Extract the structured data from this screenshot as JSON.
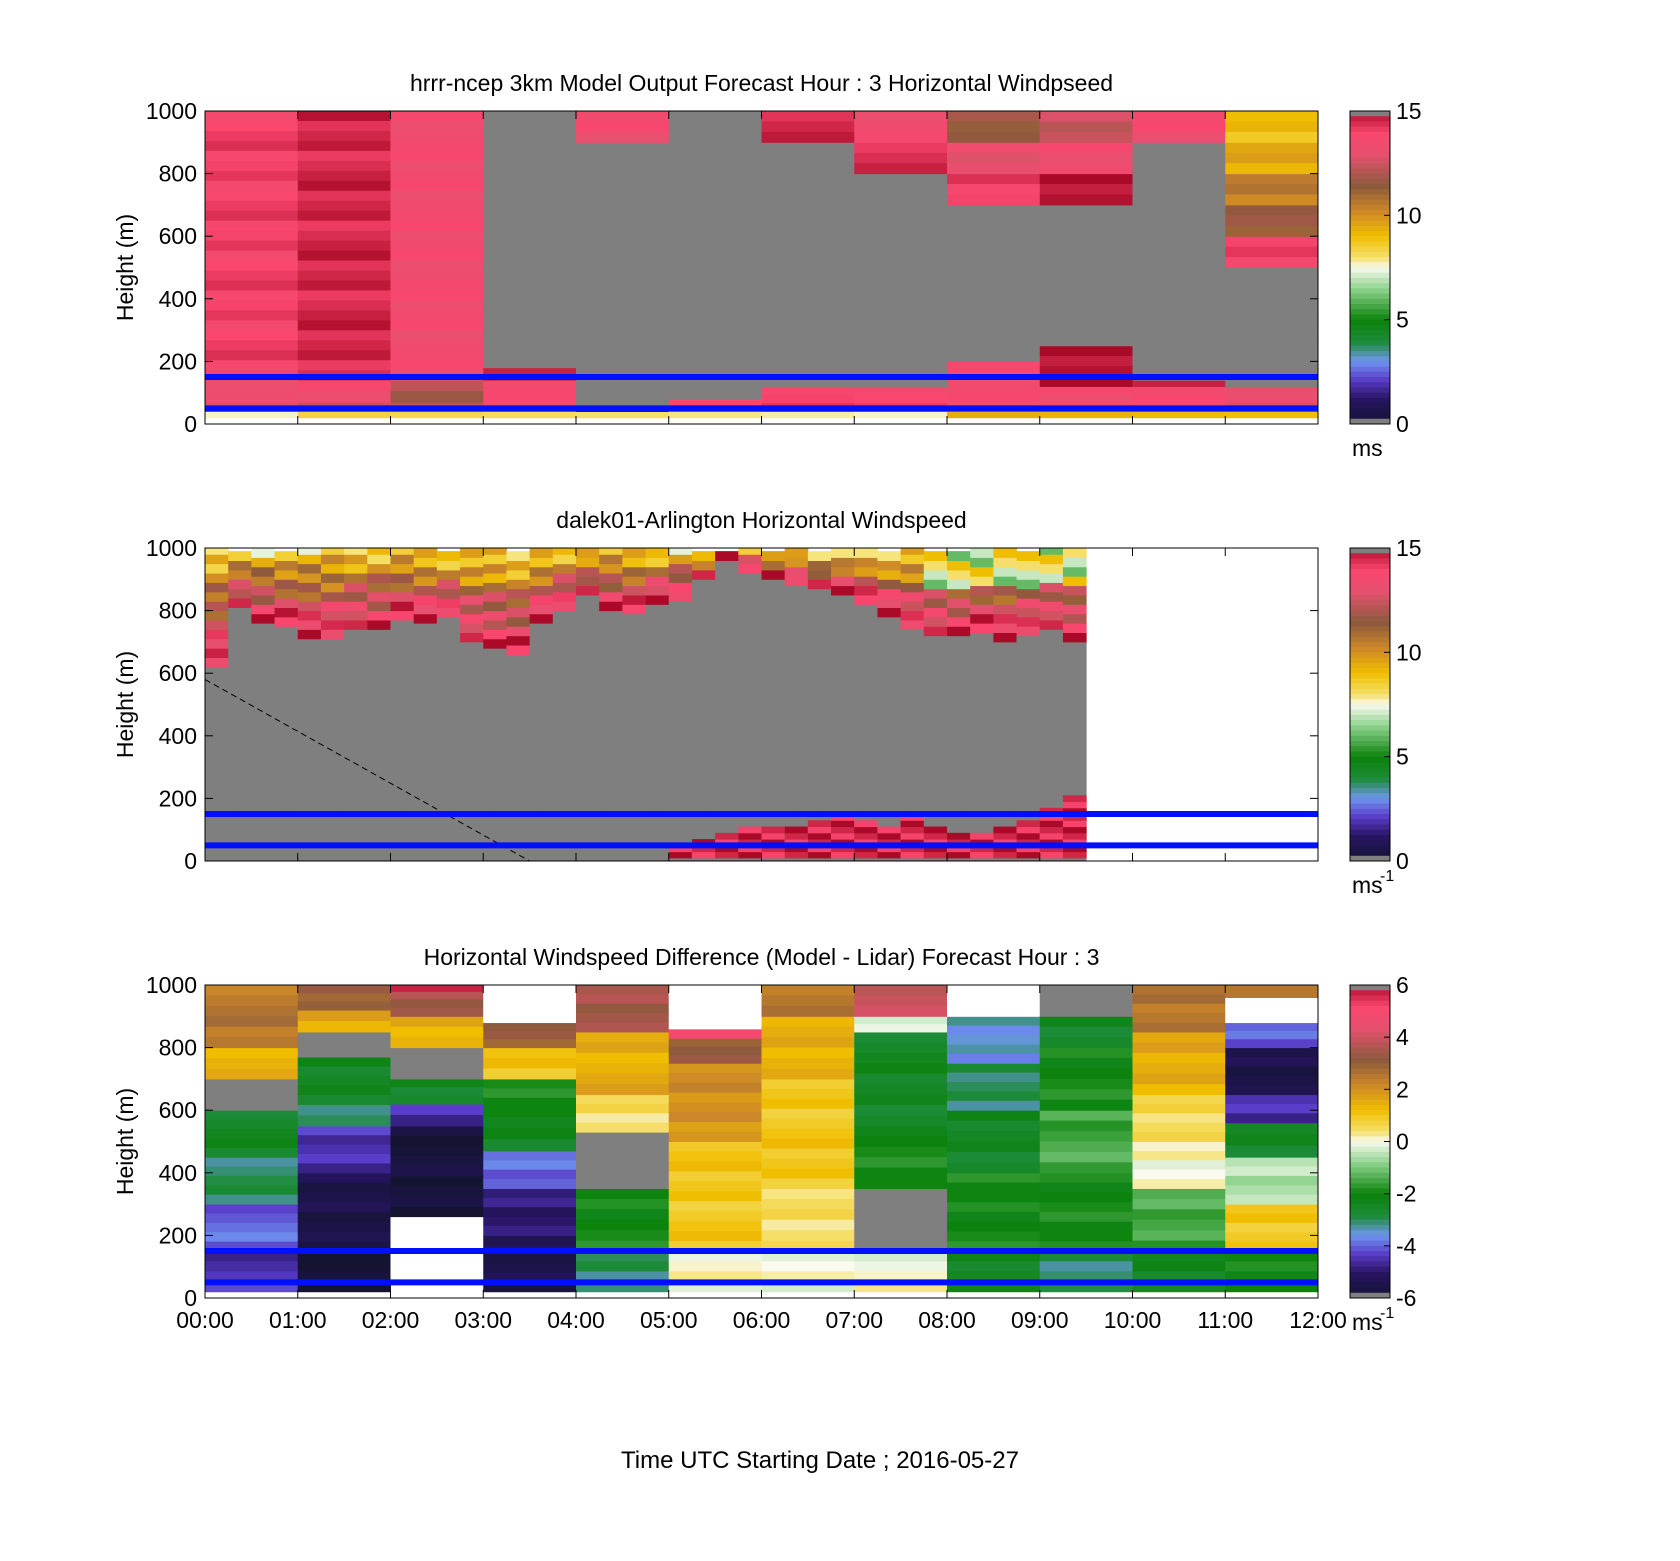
{
  "figure": {
    "xlabel": "Time UTC  Starting Date ; 2016-05-27",
    "x_ticks": [
      "00:00",
      "01:00",
      "02:00",
      "03:00",
      "04:00",
      "05:00",
      "06:00",
      "07:00",
      "08:00",
      "09:00",
      "10:00",
      "11:00",
      "12:00"
    ]
  },
  "chart_data": [
    {
      "type": "heatmap",
      "title": "hrrr-ncep 3km Model Output   Forecast Hour : 3 Horizontal Windpseed",
      "xlabel": "",
      "ylabel": "Height (m)",
      "xlim": [
        0,
        12
      ],
      "ylim": [
        0,
        1000
      ],
      "y_ticks": [
        0,
        200,
        400,
        600,
        800,
        1000
      ],
      "colorbar": {
        "ticks": [
          0,
          5,
          10,
          15
        ],
        "range": [
          0,
          15
        ],
        "unit": "ms",
        "unit_sup": "",
        "palette": "speed"
      },
      "hlines": [
        50,
        150
      ],
      "grid": false,
      "columns": [
        {
          "x": 0,
          "segments": [
            [
              20,
              40,
              8
            ],
            [
              40,
              70,
              13
            ],
            [
              70,
              140,
              13.5
            ],
            [
              140,
              1000,
              14
            ]
          ]
        },
        {
          "x": 1,
          "segments": [
            [
              20,
              40,
              8
            ],
            [
              40,
              70,
              12
            ],
            [
              70,
              140,
              13.5
            ],
            [
              140,
              1000,
              14.5
            ]
          ]
        },
        {
          "x": 2,
          "segments": [
            [
              20,
              40,
              8
            ],
            [
              40,
              70,
              12
            ],
            [
              70,
              140,
              12
            ],
            [
              140,
              1000,
              13.5
            ]
          ]
        },
        {
          "x": 3,
          "segments": [
            [
              20,
              40,
              8
            ],
            [
              40,
              70,
              13
            ],
            [
              70,
              140,
              13.5
            ],
            [
              140,
              180,
              14.5
            ],
            [
              180,
              1000,
              -1
            ]
          ]
        },
        {
          "x": 4,
          "segments": [
            [
              20,
              40,
              8
            ],
            [
              40,
              60,
              1
            ],
            [
              60,
              900,
              -1
            ],
            [
              900,
              1000,
              13.5
            ]
          ]
        },
        {
          "x": 5,
          "segments": [
            [
              20,
              40,
              8
            ],
            [
              40,
              80,
              14
            ],
            [
              80,
              1000,
              -1
            ]
          ]
        },
        {
          "x": 6,
          "segments": [
            [
              20,
              40,
              8
            ],
            [
              40,
              120,
              14
            ],
            [
              120,
              900,
              -1
            ],
            [
              900,
              1000,
              14.5
            ]
          ]
        },
        {
          "x": 7,
          "segments": [
            [
              20,
              40,
              8
            ],
            [
              40,
              120,
              14
            ],
            [
              120,
              800,
              -1
            ],
            [
              800,
              900,
              14.5
            ],
            [
              900,
              1000,
              13.5
            ]
          ]
        },
        {
          "x": 8,
          "segments": [
            [
              20,
              40,
              9
            ],
            [
              40,
              200,
              13.5
            ],
            [
              200,
              700,
              -1
            ],
            [
              700,
              800,
              14
            ],
            [
              800,
              900,
              13
            ],
            [
              900,
              1000,
              11.5
            ]
          ]
        },
        {
          "x": 9,
          "segments": [
            [
              20,
              40,
              9
            ],
            [
              40,
              120,
              13.5
            ],
            [
              120,
              250,
              15
            ],
            [
              250,
              700,
              -1
            ],
            [
              700,
              800,
              15
            ],
            [
              800,
              900,
              13.5
            ],
            [
              900,
              1000,
              12.5
            ]
          ]
        },
        {
          "x": 10,
          "segments": [
            [
              20,
              40,
              9
            ],
            [
              40,
              120,
              13.5
            ],
            [
              120,
              140,
              14.5
            ],
            [
              140,
              900,
              -1
            ],
            [
              900,
              1000,
              13.5
            ]
          ]
        },
        {
          "x": 11,
          "segments": [
            [
              20,
              40,
              9
            ],
            [
              40,
              120,
              13
            ],
            [
              120,
              500,
              -1
            ],
            [
              500,
              600,
              14
            ],
            [
              600,
              700,
              11.5
            ],
            [
              700,
              800,
              10.5
            ],
            [
              800,
              900,
              9.5
            ],
            [
              900,
              1000,
              9
            ]
          ]
        }
      ]
    },
    {
      "type": "heatmap",
      "title": "dalek01-Arlington  Horizontal Windspeed",
      "xlabel": "",
      "ylabel": "Height (m)",
      "xlim": [
        0,
        12
      ],
      "ylim": [
        0,
        1000
      ],
      "y_ticks": [
        0,
        200,
        400,
        600,
        800,
        1000
      ],
      "colorbar": {
        "ticks": [
          0,
          5,
          10,
          15
        ],
        "range": [
          0,
          15
        ],
        "unit": "ms",
        "unit_sup": "-1",
        "palette": "speed"
      },
      "hlines": [
        50,
        150
      ],
      "grid": false,
      "bins_per_hour": 4,
      "data_top": [
        620,
        810,
        760,
        750,
        710,
        710,
        740,
        740,
        770,
        760,
        780,
        700,
        680,
        660,
        760,
        800,
        850,
        800,
        790,
        820,
        830,
        900,
        960,
        920,
        900,
        880,
        870,
        850,
        820,
        780,
        740,
        720,
        720,
        730,
        700,
        720,
        740,
        700
      ],
      "low_profile": [
        0,
        0,
        0,
        0,
        0,
        0,
        0,
        0,
        0,
        0,
        0,
        0,
        0,
        0,
        0,
        0,
        0,
        0,
        0,
        0,
        40,
        60,
        80,
        100,
        90,
        100,
        120,
        140,
        120,
        100,
        130,
        90,
        70,
        80,
        100,
        120,
        150,
        200
      ],
      "beam_line": {
        "from": [
          0,
          580
        ],
        "to": [
          3.5,
          0
        ]
      }
    },
    {
      "type": "heatmap",
      "title": "Horizontal Windspeed Difference (Model - Lidar) Forecast Hour : 3",
      "xlabel": "Time UTC  Starting Date ; 2016-05-27",
      "ylabel": "Height (m)",
      "xlim": [
        0,
        12
      ],
      "ylim": [
        0,
        1000
      ],
      "y_ticks": [
        0,
        200,
        400,
        600,
        800,
        1000
      ],
      "colorbar": {
        "ticks": [
          -6,
          -4,
          -2,
          0,
          2,
          4,
          6
        ],
        "range": [
          -6,
          6
        ],
        "unit": "ms",
        "unit_sup": "-1",
        "palette": "diff"
      },
      "hlines": [
        50,
        150
      ],
      "grid": false,
      "columns": [
        {
          "x": 0,
          "segments": [
            [
              20,
              150,
              -4.5
            ],
            [
              150,
              300,
              -4
            ],
            [
              300,
              450,
              -3
            ],
            [
              450,
              600,
              -2.5
            ],
            [
              600,
              700,
              -1
            ],
            [
              700,
              800,
              1.5
            ],
            [
              800,
              1000,
              2.5
            ]
          ]
        },
        {
          "x": 1,
          "segments": [
            [
              20,
              180,
              -6
            ],
            [
              180,
              400,
              -5.5
            ],
            [
              400,
              550,
              -4.5
            ],
            [
              550,
              650,
              -3
            ],
            [
              650,
              770,
              -2.5
            ],
            [
              770,
              850,
              -1
            ],
            [
              850,
              920,
              1.5
            ],
            [
              920,
              1000,
              3
            ]
          ]
        },
        {
          "x": 2,
          "segments": [
            [
              60,
              260,
              -99
            ],
            [
              260,
              550,
              -5.8
            ],
            [
              550,
              620,
              -4.5
            ],
            [
              620,
              700,
              -2.5
            ],
            [
              700,
              800,
              -1
            ],
            [
              800,
              900,
              1.5
            ],
            [
              900,
              980,
              3.5
            ],
            [
              980,
              1000,
              5.5
            ]
          ]
        },
        {
          "x": 3,
          "segments": [
            [
              20,
              200,
              -5.5
            ],
            [
              200,
              350,
              -5
            ],
            [
              350,
              470,
              -4
            ],
            [
              470,
              580,
              -2.5
            ],
            [
              580,
              700,
              -2
            ],
            [
              700,
              800,
              1
            ],
            [
              800,
              880,
              3
            ],
            [
              880,
              1000,
              -99
            ]
          ]
        },
        {
          "x": 4,
          "segments": [
            [
              20,
              150,
              -3
            ],
            [
              150,
              350,
              -2
            ],
            [
              350,
              530,
              -1
            ],
            [
              530,
              650,
              0.5
            ],
            [
              650,
              850,
              1.5
            ],
            [
              850,
              1000,
              3.5
            ]
          ]
        },
        {
          "x": 5,
          "segments": [
            [
              20,
              150,
              0
            ],
            [
              150,
              500,
              1
            ],
            [
              500,
              750,
              2
            ],
            [
              750,
              830,
              3
            ],
            [
              830,
              860,
              5
            ],
            [
              860,
              1000,
              -99
            ]
          ]
        },
        {
          "x": 6,
          "segments": [
            [
              20,
              150,
              0
            ],
            [
              150,
              350,
              0.5
            ],
            [
              350,
              700,
              1
            ],
            [
              700,
              900,
              1.5
            ],
            [
              900,
              1000,
              2.5
            ]
          ]
        },
        {
          "x": 7,
          "segments": [
            [
              20,
              150,
              0
            ],
            [
              150,
              350,
              -1
            ],
            [
              350,
              550,
              -2
            ],
            [
              550,
              850,
              -2.5
            ],
            [
              850,
              900,
              0
            ],
            [
              900,
              1000,
              4
            ]
          ]
        },
        {
          "x": 8,
          "segments": [
            [
              20,
              150,
              -2.5
            ],
            [
              150,
              400,
              -2
            ],
            [
              400,
              600,
              -2.5
            ],
            [
              600,
              750,
              -3
            ],
            [
              750,
              900,
              -3.5
            ],
            [
              900,
              1000,
              -99
            ]
          ]
        },
        {
          "x": 9,
          "segments": [
            [
              20,
              150,
              -3
            ],
            [
              150,
              400,
              -2
            ],
            [
              400,
              600,
              -1.5
            ],
            [
              600,
              800,
              -2
            ],
            [
              800,
              900,
              -2.5
            ],
            [
              900,
              1000,
              -1
            ]
          ]
        },
        {
          "x": 10,
          "segments": [
            [
              20,
              150,
              -2.5
            ],
            [
              150,
              350,
              -1.5
            ],
            [
              350,
              500,
              0
            ],
            [
              500,
              650,
              0.5
            ],
            [
              650,
              850,
              1.5
            ],
            [
              850,
              1000,
              2.5
            ]
          ]
        },
        {
          "x": 11,
          "segments": [
            [
              20,
              150,
              -2
            ],
            [
              150,
              300,
              1
            ],
            [
              300,
              450,
              -0.5
            ],
            [
              450,
              560,
              -2.5
            ],
            [
              560,
              650,
              -4.5
            ],
            [
              650,
              800,
              -5.5
            ],
            [
              800,
              880,
              -4
            ],
            [
              880,
              960,
              -99
            ],
            [
              960,
              1000,
              2.5
            ]
          ]
        }
      ]
    }
  ]
}
